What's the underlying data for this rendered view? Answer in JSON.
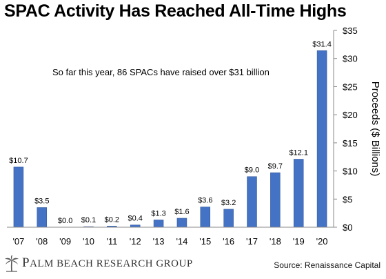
{
  "title": "SPAC Activity Has Reached All-Time Highs",
  "source": "Source: Renaissance Capital",
  "brand": {
    "name": "Palm Beach Research Group",
    "logo_icon": "palm-tree-icon"
  },
  "colors": {
    "bar": "#4472C4",
    "bar_edge": "#2f5597"
  },
  "chart_data": {
    "type": "bar",
    "categories": [
      "'07",
      "'08",
      "'09",
      "'10",
      "'11",
      "'12",
      "'13",
      "'14",
      "'15",
      "'16",
      "'17",
      "'18",
      "'19",
      "'20"
    ],
    "values": [
      10.7,
      3.5,
      0.0,
      0.1,
      0.2,
      0.4,
      1.3,
      1.6,
      3.6,
      3.2,
      9.0,
      9.7,
      12.1,
      31.4
    ],
    "data_labels": [
      "$10.7",
      "$3.5",
      "$0.0",
      "$0.1",
      "$0.2",
      "$0.4",
      "$1.3",
      "$1.6",
      "$3.6",
      "$3.2",
      "$9.0",
      "$9.7",
      "$12.1",
      "$31.4"
    ],
    "ylabel": "Proceeds ($ Billions)",
    "yaxis_position": "right",
    "ylim": [
      0,
      35
    ],
    "yticks": [
      0,
      5,
      10,
      15,
      20,
      25,
      30,
      35
    ],
    "ytick_labels": [
      "$0",
      "$5",
      "$10",
      "$15",
      "$20",
      "$25",
      "$30",
      "$35"
    ],
    "annotation": "So far this year, 86 SPACs have raised over $31 billion",
    "grid": false,
    "legend": "none"
  }
}
